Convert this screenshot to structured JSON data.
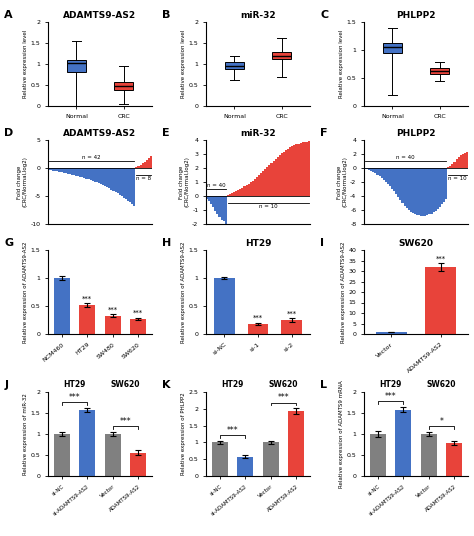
{
  "chart_data": [
    {
      "type": "box",
      "panel_label": "A",
      "title": "ADAMTS9-AS2",
      "y_label": "Relative expression level",
      "categories": [
        "Normal",
        "CRC"
      ],
      "stats": [
        {
          "q1": 0.82,
          "median": 1.02,
          "q3": 1.1,
          "whislo": 0.0,
          "whishi": 1.55
        },
        {
          "q1": 0.38,
          "median": 0.48,
          "q3": 0.56,
          "whislo": 0.05,
          "whishi": 0.95
        }
      ],
      "colors": [
        "#4472c4",
        "#e8433a"
      ],
      "ylim": [
        0,
        2.0
      ],
      "yticks": [
        0,
        0.5,
        1,
        1.5,
        2
      ]
    },
    {
      "type": "box",
      "panel_label": "B",
      "title": "miR-32",
      "y_label": "Relative expression level",
      "categories": [
        "Normal",
        "CRC"
      ],
      "stats": [
        {
          "q1": 0.88,
          "median": 0.95,
          "q3": 1.05,
          "whislo": 0.62,
          "whishi": 1.18
        },
        {
          "q1": 1.12,
          "median": 1.2,
          "q3": 1.28,
          "whislo": 0.7,
          "whishi": 1.62
        }
      ],
      "colors": [
        "#4472c4",
        "#e8433a"
      ],
      "ylim": [
        0,
        2.0
      ],
      "yticks": [
        0,
        0.5,
        1,
        1.5,
        2
      ]
    },
    {
      "type": "box",
      "panel_label": "C",
      "title": "PHLPP2",
      "y_label": "Relative expression level",
      "categories": [
        "Normal",
        "CRC"
      ],
      "stats": [
        {
          "q1": 0.95,
          "median": 1.05,
          "q3": 1.12,
          "whislo": 0.2,
          "whishi": 1.4
        },
        {
          "q1": 0.57,
          "median": 0.63,
          "q3": 0.68,
          "whislo": 0.45,
          "whishi": 0.78
        }
      ],
      "colors": [
        "#4472c4",
        "#e8433a"
      ],
      "ylim": [
        0,
        1.5
      ],
      "yticks": [
        0,
        0.5,
        1,
        1.5
      ]
    },
    {
      "type": "bar",
      "panel_label": "D",
      "title": "ADAMTS9-AS2",
      "y_label": "Fold change\n(CRC/Normal,log2)",
      "tick_labels": "y",
      "series": [
        {
          "color": "#4472c4",
          "annotation": "n = 42",
          "values": [
            -0.3,
            -0.38,
            -0.46,
            -0.54,
            -0.62,
            -0.7,
            -0.78,
            -0.86,
            -0.94,
            -1.02,
            -1.1,
            -1.18,
            -1.26,
            -1.35,
            -1.44,
            -1.55,
            -1.66,
            -1.78,
            -1.9,
            -2.03,
            -2.16,
            -2.3,
            -2.44,
            -2.58,
            -2.73,
            -2.9,
            -3.07,
            -3.25,
            -3.44,
            -3.64,
            -3.85,
            -4.07,
            -4.3,
            -4.54,
            -4.8,
            -5.06,
            -5.33,
            -5.6,
            -5.88,
            -6.16,
            -6.44,
            -6.72
          ]
        },
        {
          "color": "#e8433a",
          "annotation": "n = 8",
          "values": [
            0.25,
            0.42,
            0.62,
            0.85,
            1.1,
            1.4,
            1.75,
            2.2
          ]
        }
      ],
      "ylim": [
        -10,
        5
      ],
      "yticks": [
        -10,
        -5,
        0,
        5
      ]
    },
    {
      "type": "bar",
      "panel_label": "E",
      "title": "miR-32",
      "y_label": "Fold change\n(CRC/Normal,log2)",
      "tick_labels": "y",
      "series": [
        {
          "color": "#4472c4",
          "annotation": "n = 40",
          "values": [
            -0.2,
            -0.38,
            -0.58,
            -0.82,
            -1.05,
            -1.28,
            -1.52,
            -1.68,
            -1.82,
            -1.98
          ]
        },
        {
          "color": "#e8433a",
          "annotation": "n = 10",
          "values": [
            0.08,
            0.14,
            0.2,
            0.27,
            0.34,
            0.42,
            0.5,
            0.59,
            0.68,
            0.78,
            0.88,
            0.99,
            1.1,
            1.22,
            1.35,
            1.48,
            1.62,
            1.76,
            1.9,
            2.05,
            2.2,
            2.35,
            2.5,
            2.65,
            2.8,
            2.92,
            3.04,
            3.15,
            3.26,
            3.37,
            3.48,
            3.56,
            3.64,
            3.7,
            3.75,
            3.79,
            3.83,
            3.86,
            3.88,
            3.9
          ]
        }
      ],
      "ylim": [
        -2,
        4
      ],
      "yticks": [
        -2,
        -1,
        0,
        1,
        2,
        3,
        4
      ]
    },
    {
      "type": "bar",
      "panel_label": "F",
      "title": "PHLPP2",
      "y_label": "Fold change\n(CRC/Normal,log2)",
      "tick_labels": "y",
      "series": [
        {
          "color": "#4472c4",
          "annotation": "n = 40",
          "values": [
            -0.08,
            -0.18,
            -0.3,
            -0.44,
            -0.6,
            -0.78,
            -0.98,
            -1.2,
            -1.44,
            -1.7,
            -1.98,
            -2.28,
            -2.6,
            -2.94,
            -3.3,
            -3.68,
            -4.08,
            -4.5,
            -4.94,
            -5.4,
            -5.7,
            -5.98,
            -6.22,
            -6.42,
            -6.58,
            -6.7,
            -6.78,
            -6.82,
            -6.83,
            -6.8,
            -6.74,
            -6.64,
            -6.5,
            -6.32,
            -6.1,
            -5.84,
            -5.54,
            -5.2,
            -4.82,
            -4.4
          ]
        },
        {
          "color": "#e8433a",
          "annotation": "n = 10",
          "values": [
            0.15,
            0.35,
            0.6,
            0.9,
            1.22,
            1.56,
            1.8,
            2.0,
            2.15,
            2.25
          ]
        }
      ],
      "ylim": [
        -8,
        4
      ],
      "yticks": [
        -8,
        -6,
        -4,
        -2,
        0,
        2,
        4
      ]
    },
    {
      "type": "bar",
      "panel_label": "G",
      "y_label": "Relative expression of ADAMTS9-AS2",
      "categories": [
        "NCM460",
        "HT29",
        "SW480",
        "SW620"
      ],
      "values": [
        1.0,
        0.52,
        0.33,
        0.27
      ],
      "errors": [
        0.03,
        0.03,
        0.02,
        0.02
      ],
      "colors": [
        "#4472c4",
        "#e8433a",
        "#e8433a",
        "#e8433a"
      ],
      "annotations": [
        null,
        "***",
        "***",
        "***"
      ],
      "ylim": [
        0,
        1.5
      ],
      "yticks": [
        0,
        0.5,
        1,
        1.5
      ]
    },
    {
      "type": "bar",
      "panel_label": "H",
      "title": "HT29",
      "y_label": "Relative expression of ADAMTS9-AS2",
      "categories": [
        "si-NC",
        "si-1",
        "si-2"
      ],
      "values": [
        1.0,
        0.18,
        0.25
      ],
      "errors": [
        0.02,
        0.02,
        0.03
      ],
      "colors": [
        "#4472c4",
        "#e8433a",
        "#e8433a"
      ],
      "annotations": [
        null,
        "***",
        "***"
      ],
      "ylim": [
        0,
        1.5
      ],
      "yticks": [
        0,
        0.5,
        1,
        1.5
      ]
    },
    {
      "type": "bar",
      "panel_label": "I",
      "title": "SW620",
      "y_label": "Relative expression of ADAMTS9-AS2",
      "categories": [
        "Vector",
        "ADAMTS9-AS2"
      ],
      "values": [
        1.0,
        32.0
      ],
      "errors": [
        0.15,
        1.8
      ],
      "colors": [
        "#4472c4",
        "#e8433a"
      ],
      "annotations": [
        null,
        "***"
      ],
      "ylim": [
        0,
        40
      ],
      "yticks": [
        0,
        5,
        10,
        15,
        20,
        25,
        30,
        35,
        40
      ]
    },
    {
      "type": "bar",
      "panel_label": "J",
      "y_label": "Relative expression of miR-32",
      "categories": [
        "si-NC",
        "si-ADAMTS9-AS2",
        "Vector",
        "ADAMTS9-AS2"
      ],
      "values": [
        1.0,
        1.57,
        1.0,
        0.55
      ],
      "errors": [
        0.04,
        0.05,
        0.04,
        0.06
      ],
      "colors": [
        "#808080",
        "#4472c4",
        "#808080",
        "#e8433a"
      ],
      "groups": [
        {
          "label": "HT29",
          "annotation": "***"
        },
        {
          "label": "SW620",
          "annotation": "***"
        }
      ],
      "ylim": [
        0,
        2.0
      ],
      "yticks": [
        0,
        0.5,
        1,
        1.5,
        2
      ]
    },
    {
      "type": "bar",
      "panel_label": "K",
      "y_label": "Relative expression of PHLPP2",
      "categories": [
        "si-NC",
        "si-ADAMTS9-AS2",
        "Vector",
        "ADAMTS9-AS2"
      ],
      "values": [
        1.0,
        0.58,
        1.0,
        1.93
      ],
      "errors": [
        0.04,
        0.04,
        0.04,
        0.08
      ],
      "colors": [
        "#808080",
        "#4472c4",
        "#808080",
        "#e8433a"
      ],
      "groups": [
        {
          "label": "HT29",
          "annotation": "***"
        },
        {
          "label": "SW620",
          "annotation": "***"
        }
      ],
      "ylim": [
        0,
        2.5
      ],
      "yticks": [
        0,
        0.5,
        1,
        1.5,
        2,
        2.5
      ]
    },
    {
      "type": "bar",
      "panel_label": "L",
      "y_label": "Relative expression of ADAMTS9 mRNA",
      "categories": [
        "si-NC",
        "si-ADAMTS9-AS2",
        "Vector",
        "ADAMTS9-AS2"
      ],
      "values": [
        1.0,
        1.58,
        1.0,
        0.78
      ],
      "errors": [
        0.06,
        0.06,
        0.05,
        0.05
      ],
      "colors": [
        "#808080",
        "#4472c4",
        "#808080",
        "#e8433a"
      ],
      "groups": [
        {
          "label": "HT29",
          "annotation": "***"
        },
        {
          "label": "SW620",
          "annotation": "*"
        }
      ],
      "ylim": [
        0,
        2.0
      ],
      "yticks": [
        0,
        0.5,
        1,
        1.5,
        2
      ]
    }
  ]
}
